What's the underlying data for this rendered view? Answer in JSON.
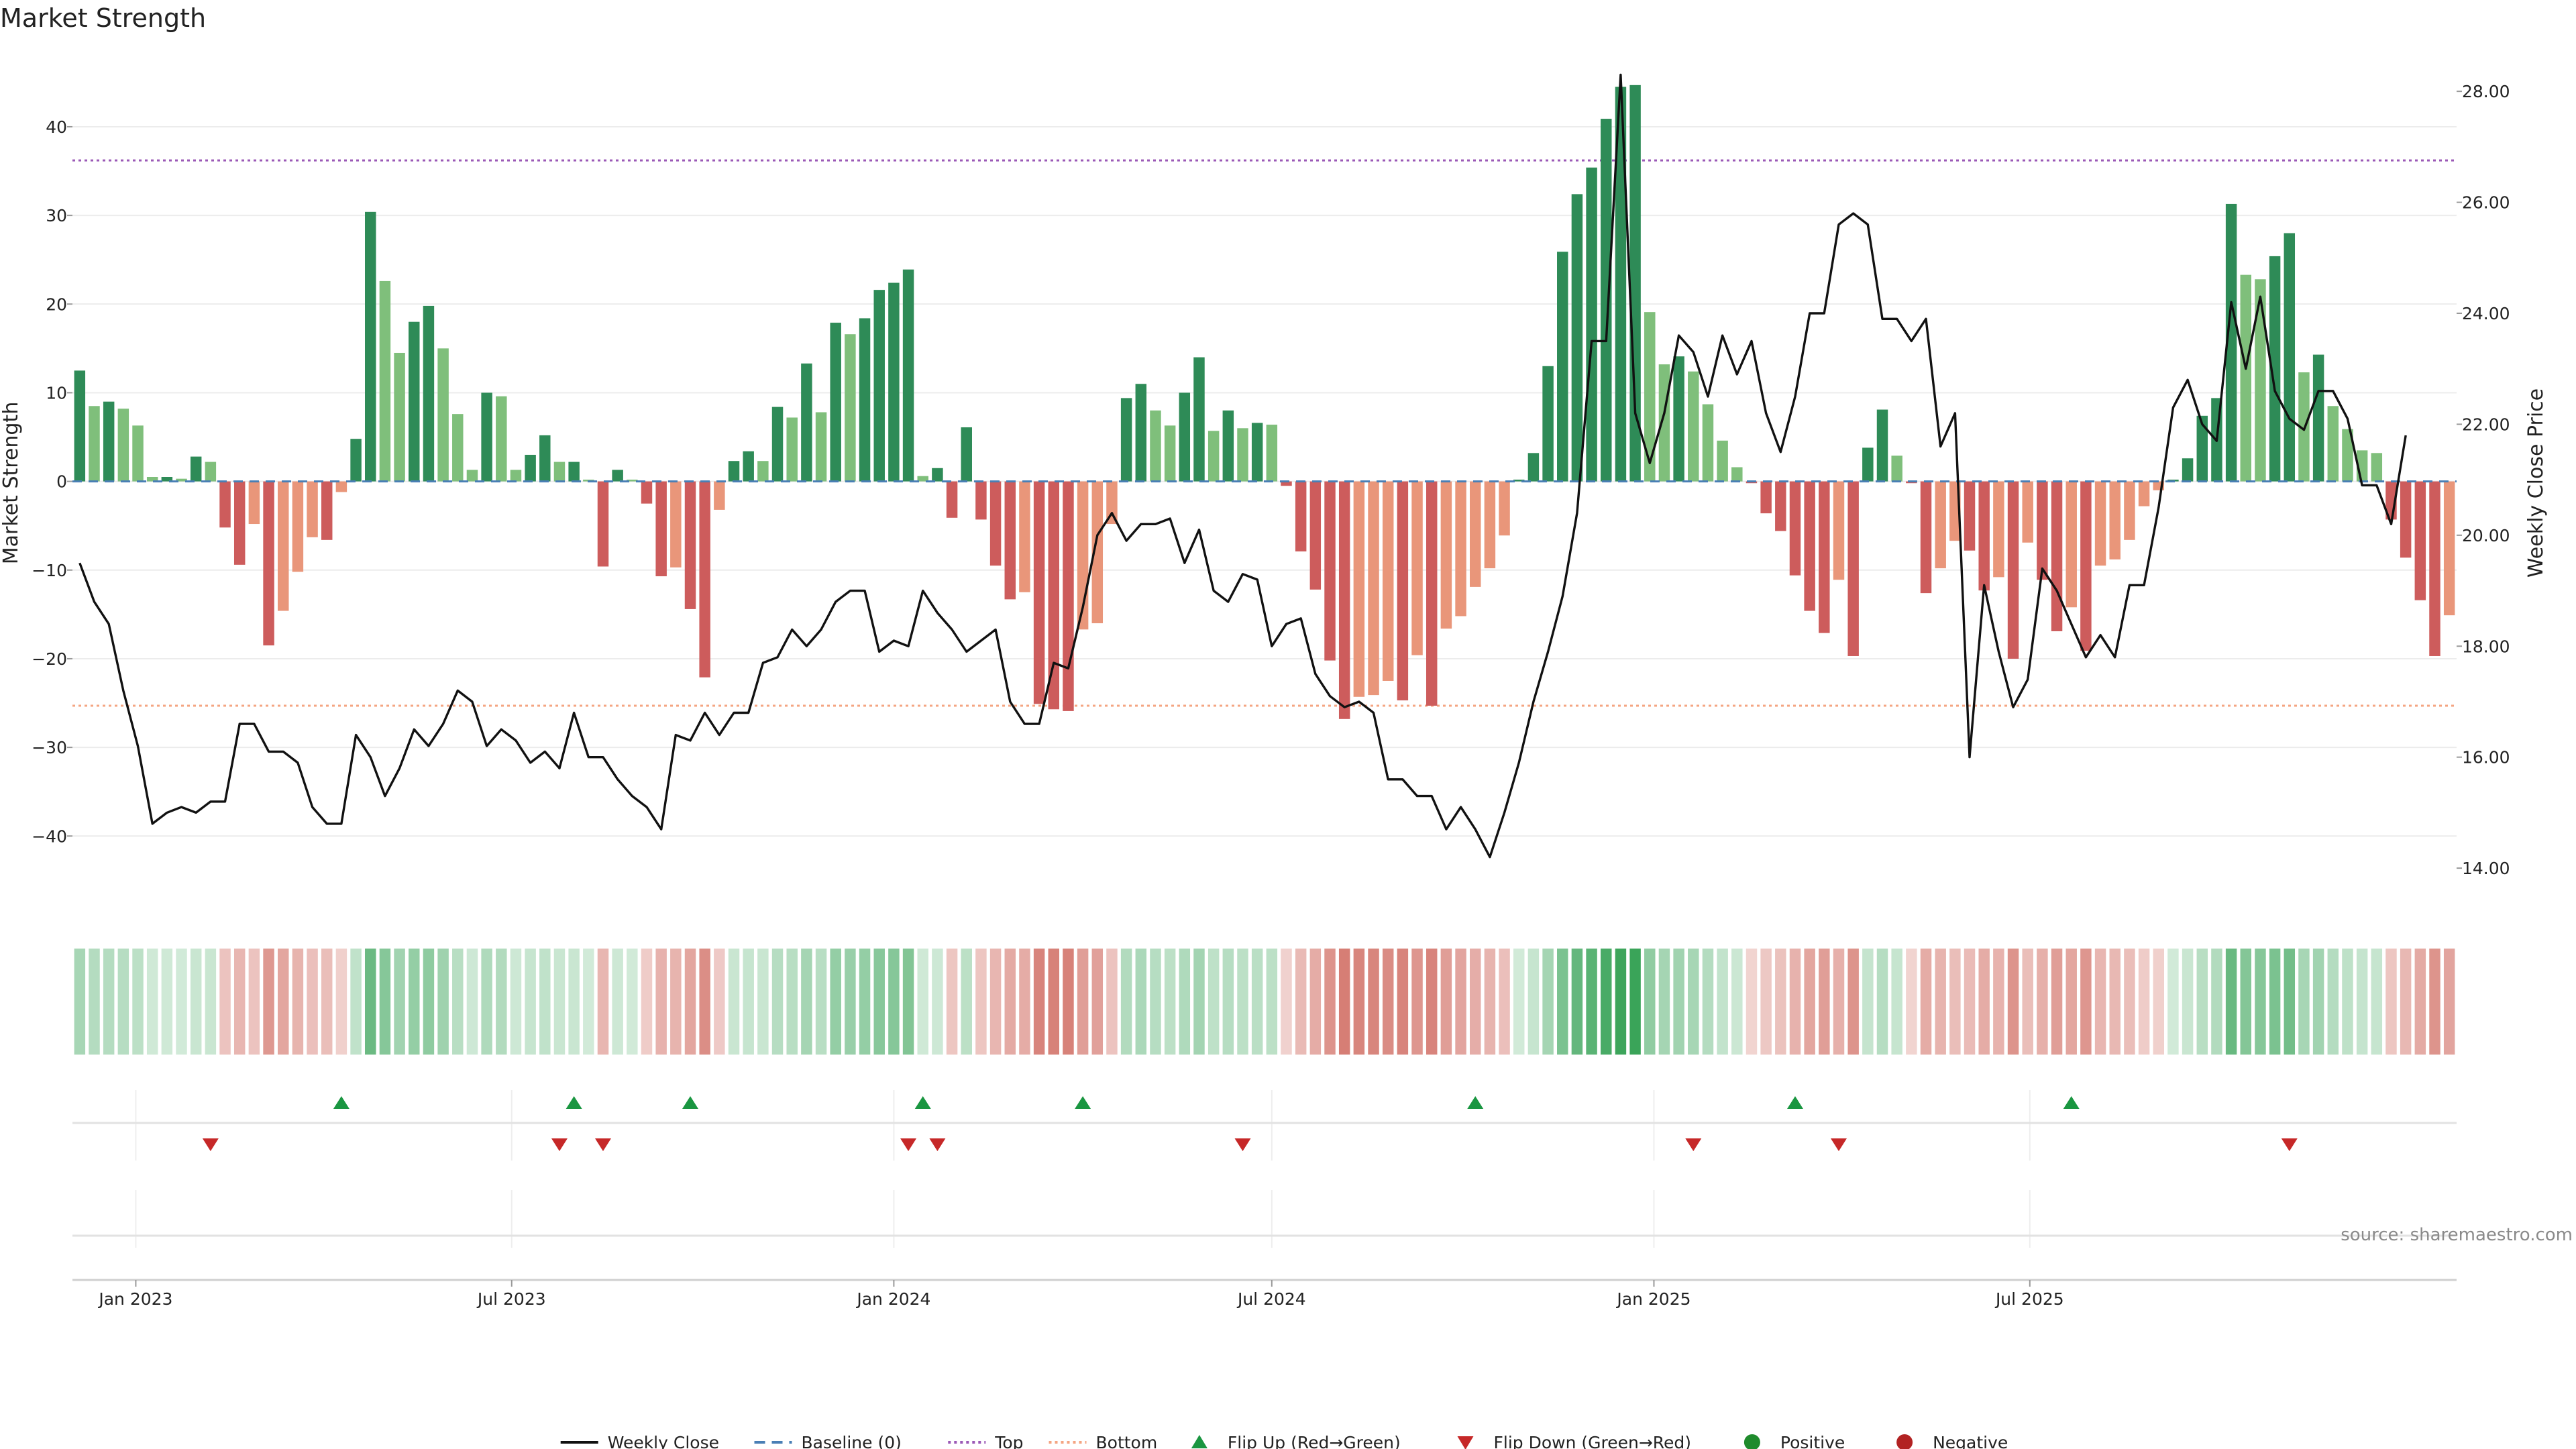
{
  "chart_data": {
    "type": "bar",
    "title": "Market Strength",
    "ylabel_left": "Market Strength",
    "ylabel_right": "Weekly Close Price",
    "source": "source: sharemaestro.com",
    "weeks_start": "2022-12-05",
    "x_tick_labels": [
      "Jan 2023",
      "Jul 2023",
      "Jan 2024",
      "Jul 2024",
      "Jan 2025",
      "Jul 2025"
    ],
    "x_tick_dates": [
      "2023-01-01",
      "2023-07-01",
      "2024-01-01",
      "2024-07-01",
      "2025-01-01",
      "2025-07-01"
    ],
    "y_left_ticks": [
      -40,
      -30,
      -20,
      -10,
      0,
      10,
      20,
      30,
      40
    ],
    "y_left_range": [
      -48,
      49
    ],
    "y_right_ticks": [
      "14.00",
      "16.00",
      "18.00",
      "20.00",
      "22.00",
      "24.00",
      "26.00",
      "28.00"
    ],
    "y_right_range": [
      13.3,
      28.8
    ],
    "top_threshold": 36.2,
    "bottom_threshold": -25.3,
    "grid": true,
    "legend_position": "bottom",
    "colors": {
      "strong_positive": "#2e8b57",
      "weak_positive": "#7fbf7b",
      "strong_negative": "#cd5c5c",
      "weak_negative": "#e9967a",
      "price_line": "#111111",
      "baseline": "#4a7fb5",
      "top": "#9b59b6",
      "bottom": "#f4a582",
      "flip_up": "#1a9641",
      "flip_down": "#c62828"
    },
    "series": [
      {
        "name": "Market Strength",
        "values": [
          12.5,
          8.5,
          9,
          8.2,
          6.3,
          0.5,
          0.5,
          0.3,
          2.8,
          2.2,
          -5.2,
          -9.4,
          -4.8,
          -18.5,
          -14.6,
          -10.2,
          -6.3,
          -6.6,
          -1.2,
          4.8,
          30.4,
          22.6,
          14.5,
          18,
          19.8,
          15,
          7.6,
          1.3,
          10,
          9.6,
          1.3,
          3,
          5.2,
          2.2,
          2.2,
          0.2,
          -9.6,
          1.3,
          0.2,
          -2.5,
          -10.7,
          -9.7,
          -14.4,
          -22.1,
          -3.2,
          2.3,
          3.4,
          2.3,
          8.4,
          7.2,
          13.3,
          7.8,
          17.9,
          16.6,
          18.4,
          21.6,
          22.4,
          23.9,
          0.6,
          1.5,
          -4.1,
          6.1,
          -4.3,
          -9.5,
          -13.3,
          -12.5,
          -25.1,
          -25.7,
          -25.9,
          -16.7,
          -16,
          -4.8,
          9.4,
          11,
          8,
          6.3,
          10,
          14,
          5.7,
          8,
          6,
          6.6,
          6.4,
          -0.5,
          -7.9,
          -12.2,
          -20.2,
          -26.8,
          -24.3,
          -24.1,
          -22.5,
          -24.7,
          -19.6,
          -25.3,
          -16.6,
          -15.2,
          -11.9,
          -9.8,
          -6.1,
          0.2,
          3.2,
          13,
          25.9,
          32.4,
          35.4,
          40.9,
          44.5,
          44.7,
          19.1,
          13.2,
          14.1,
          12.4,
          8.7,
          4.6,
          1.6,
          -0.2,
          -3.6,
          -5.6,
          -10.6,
          -14.6,
          -17.1,
          -11.1,
          -19.7,
          3.8,
          8.1,
          2.9,
          -0.2,
          -12.6,
          -9.8,
          -6.7,
          -7.8,
          -12.3,
          -10.8,
          -20,
          -6.9,
          -11.1,
          -16.9,
          -14.2,
          -19.1,
          -9.5,
          -8.8,
          -6.6,
          -2.8,
          -1,
          0.2,
          2.6,
          7.4,
          9.4,
          31.3,
          23.3,
          22.8,
          25.4,
          28,
          12.3,
          14.3,
          8.5,
          5.9,
          3.5,
          3.2,
          -4.3,
          -8.6,
          -13.4,
          -19.7,
          -15.1
        ]
      },
      {
        "name": "Weekly Close",
        "values": [
          19.5,
          18.8,
          18.4,
          17.2,
          16.2,
          14.8,
          15.0,
          15.1,
          15.0,
          15.2,
          15.2,
          16.6,
          16.6,
          16.1,
          16.1,
          15.9,
          15.1,
          14.8,
          14.8,
          16.4,
          16.0,
          15.3,
          15.8,
          16.5,
          16.2,
          16.6,
          17.2,
          17.0,
          16.2,
          16.5,
          16.3,
          15.9,
          16.1,
          15.8,
          16.8,
          16.0,
          16.0,
          15.6,
          15.3,
          15.1,
          14.7,
          16.4,
          16.3,
          16.8,
          16.4,
          16.8,
          16.8,
          17.7,
          17.8,
          18.3,
          18.0,
          18.3,
          18.8,
          19.0,
          19.0,
          17.9,
          18.1,
          18.0,
          19.0,
          18.6,
          18.3,
          17.9,
          18.1,
          18.3,
          17.0,
          16.6,
          16.6,
          17.7,
          17.6,
          18.7,
          20.0,
          20.4,
          19.9,
          20.2,
          20.2,
          20.3,
          19.5,
          20.1,
          19.0,
          18.8,
          19.3,
          19.2,
          18.0,
          18.4,
          18.5,
          17.5,
          17.1,
          16.9,
          17.0,
          16.8,
          15.6,
          15.6,
          15.3,
          15.3,
          14.7,
          15.1,
          14.7,
          14.2,
          15.0,
          15.9,
          17.0,
          17.9,
          18.9,
          20.4,
          23.5,
          23.5,
          28.3,
          22.2,
          21.3,
          22.2,
          23.6,
          23.3,
          22.5,
          23.6,
          22.9,
          23.5,
          22.2,
          21.5,
          22.5,
          24.0,
          24.0,
          25.6,
          25.8,
          25.6,
          23.9,
          23.9,
          23.5,
          23.9,
          21.6,
          22.2,
          16.0,
          19.1,
          17.9,
          16.9,
          17.4,
          19.4,
          19.0,
          18.4,
          17.8,
          18.2,
          17.8,
          19.1,
          19.1,
          20.5,
          22.3,
          22.8,
          22.0,
          21.7,
          24.2,
          23.0,
          24.3,
          22.6,
          22.1,
          21.9,
          22.6,
          22.6,
          22.1,
          20.9,
          20.9,
          20.2,
          21.8
        ],
        "color": "#111111"
      }
    ],
    "flip_up_weeks": [
      18,
      34,
      42,
      58,
      69,
      96,
      118,
      137
    ],
    "flip_down_weeks": [
      9,
      33,
      36,
      57,
      59,
      80,
      111,
      121,
      152
    ],
    "legend": [
      {
        "label": "Weekly Close",
        "kind": "line",
        "color": "#111111"
      },
      {
        "label": "Baseline (0)",
        "kind": "dash",
        "color": "#4a7fb5"
      },
      {
        "label": "Top",
        "kind": "dot",
        "color": "#9b59b6"
      },
      {
        "label": "Bottom",
        "kind": "dot",
        "color": "#f4a582"
      },
      {
        "label": "Flip Up (Red→Green)",
        "kind": "tri-up",
        "color": "#1a9641"
      },
      {
        "label": "Flip Down (Green→Red)",
        "kind": "tri-down",
        "color": "#c62828"
      },
      {
        "label": "Positive",
        "kind": "circle",
        "color": "#1f8b2c"
      },
      {
        "label": "Negative",
        "kind": "circle",
        "color": "#b22222"
      }
    ]
  }
}
